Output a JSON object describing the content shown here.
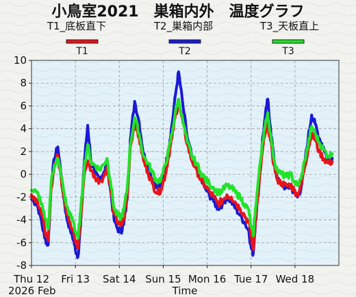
{
  "chart_data": {
    "type": "line",
    "title": "小鳥室2021　巣箱内外　温度グラフ",
    "xlabel": "Time",
    "ylabel": "",
    "ylim": [
      -8,
      10
    ],
    "yticks": [
      -8,
      -6,
      -4,
      -2,
      0,
      2,
      4,
      6,
      8,
      10
    ],
    "xlim": [
      0,
      7
    ],
    "xticks": [
      {
        "x": 0,
        "label": "Thu 12"
      },
      {
        "x": 1,
        "label": "Fri 13"
      },
      {
        "x": 2,
        "label": "Sat 14"
      },
      {
        "x": 3,
        "label": "Sun 15"
      },
      {
        "x": 4,
        "label": "Mon 16"
      },
      {
        "x": 5,
        "label": "Tue 17"
      },
      {
        "x": 6,
        "label": "Wed 18"
      }
    ],
    "xsub_label": "2026 Feb",
    "grid": true,
    "legend_position": "top",
    "series": [
      {
        "name": "T1",
        "description": "T1_底板直下",
        "color": "#e8141a",
        "x": [
          0,
          0.12,
          0.2,
          0.3,
          0.38,
          0.45,
          0.52,
          0.6,
          0.68,
          0.74,
          0.8,
          0.88,
          0.96,
          1.0,
          1.06,
          1.12,
          1.2,
          1.28,
          1.36,
          1.45,
          1.55,
          1.65,
          1.72,
          1.8,
          1.88,
          1.96,
          2.04,
          2.1,
          2.18,
          2.25,
          2.35,
          2.45,
          2.55,
          2.65,
          2.75,
          2.85,
          2.95,
          3.05,
          3.12,
          3.2,
          3.28,
          3.35,
          3.45,
          3.55,
          3.65,
          3.75,
          3.85,
          3.95,
          4.05,
          4.15,
          4.25,
          4.35,
          4.45,
          4.55,
          4.65,
          4.75,
          4.85,
          4.95,
          5.0,
          5.05,
          5.1,
          5.18,
          5.25,
          5.32,
          5.38,
          5.44,
          5.52,
          5.6,
          5.7,
          5.8,
          5.9,
          5.98,
          6.06,
          6.14,
          6.22,
          6.3,
          6.38,
          6.46,
          6.55,
          6.65,
          6.75,
          6.85
        ],
        "values": [
          -1.8,
          -2.2,
          -3.0,
          -4.8,
          -5.8,
          -1.2,
          0.8,
          1.6,
          -0.5,
          -2.0,
          -3.4,
          -4.2,
          -5.0,
          -5.8,
          -6.5,
          -4.0,
          0.0,
          1.2,
          0.3,
          -0.3,
          -0.6,
          -0.2,
          0.6,
          -1.2,
          -3.5,
          -4.2,
          -4.5,
          -4.0,
          -2.0,
          2.4,
          4.5,
          3.2,
          1.2,
          0.2,
          -0.8,
          -1.6,
          -1.4,
          0.0,
          1.5,
          3.2,
          5.2,
          6.2,
          4.5,
          2.6,
          1.2,
          0.5,
          -0.5,
          -1.0,
          -1.5,
          -2.0,
          -2.6,
          -2.3,
          -1.8,
          -2.0,
          -2.5,
          -3.0,
          -3.6,
          -4.2,
          -5.4,
          -6.6,
          -4.0,
          -1.0,
          1.8,
          3.5,
          4.5,
          3.0,
          0.8,
          -0.5,
          -0.8,
          -1.0,
          -0.9,
          -1.4,
          -1.8,
          -1.0,
          0.6,
          2.2,
          3.6,
          3.0,
          2.0,
          1.4,
          1.0,
          1.1
        ]
      },
      {
        "name": "T2",
        "description": "T2_巣箱内部",
        "color": "#1a1ad4",
        "x": [
          0,
          0.12,
          0.2,
          0.3,
          0.38,
          0.45,
          0.52,
          0.6,
          0.68,
          0.74,
          0.8,
          0.88,
          0.96,
          1.0,
          1.06,
          1.12,
          1.2,
          1.28,
          1.36,
          1.45,
          1.55,
          1.65,
          1.72,
          1.8,
          1.88,
          1.96,
          2.04,
          2.1,
          2.18,
          2.25,
          2.35,
          2.45,
          2.55,
          2.65,
          2.75,
          2.85,
          2.95,
          3.05,
          3.12,
          3.2,
          3.28,
          3.35,
          3.45,
          3.55,
          3.65,
          3.75,
          3.85,
          3.95,
          4.05,
          4.15,
          4.25,
          4.35,
          4.45,
          4.55,
          4.65,
          4.75,
          4.85,
          4.95,
          5.0,
          5.05,
          5.1,
          5.18,
          5.25,
          5.32,
          5.38,
          5.44,
          5.52,
          5.6,
          5.7,
          5.8,
          5.9,
          5.98,
          6.06,
          6.14,
          6.22,
          6.3,
          6.38,
          6.46,
          6.55,
          6.65,
          6.75,
          6.85
        ],
        "values": [
          -2.2,
          -2.6,
          -3.6,
          -5.6,
          -6.2,
          -0.8,
          1.4,
          2.4,
          -0.2,
          -2.2,
          -3.8,
          -4.8,
          -5.8,
          -6.6,
          -7.2,
          -4.4,
          1.0,
          4.3,
          1.0,
          0.0,
          -0.4,
          0.2,
          1.0,
          -1.4,
          -4.0,
          -4.8,
          -5.0,
          -4.4,
          -2.2,
          3.0,
          6.4,
          4.6,
          1.8,
          0.8,
          -0.4,
          -1.2,
          -1.0,
          0.6,
          2.2,
          4.4,
          7.0,
          9.0,
          6.0,
          3.2,
          1.6,
          0.6,
          -0.4,
          -1.2,
          -1.8,
          -2.4,
          -3.0,
          -2.6,
          -2.0,
          -2.4,
          -3.0,
          -3.6,
          -4.2,
          -5.0,
          -6.4,
          -7.0,
          -4.2,
          -1.0,
          2.6,
          5.0,
          6.6,
          4.2,
          1.4,
          -0.5,
          -0.9,
          -1.2,
          -1.1,
          -1.6,
          -2.0,
          -1.2,
          1.0,
          3.2,
          5.2,
          4.4,
          3.2,
          2.4,
          1.2,
          1.4
        ]
      },
      {
        "name": "T3",
        "description": "T3_天板直上",
        "color": "#22e22a",
        "x": [
          0,
          0.12,
          0.2,
          0.3,
          0.38,
          0.45,
          0.52,
          0.6,
          0.68,
          0.74,
          0.8,
          0.88,
          0.96,
          1.0,
          1.06,
          1.12,
          1.2,
          1.28,
          1.36,
          1.45,
          1.55,
          1.65,
          1.72,
          1.8,
          1.88,
          1.96,
          2.04,
          2.1,
          2.18,
          2.25,
          2.35,
          2.45,
          2.55,
          2.65,
          2.75,
          2.85,
          2.95,
          3.05,
          3.12,
          3.2,
          3.28,
          3.35,
          3.45,
          3.55,
          3.65,
          3.75,
          3.85,
          3.95,
          4.05,
          4.15,
          4.25,
          4.35,
          4.45,
          4.55,
          4.65,
          4.75,
          4.85,
          4.95,
          5.0,
          5.05,
          5.1,
          5.18,
          5.25,
          5.32,
          5.38,
          5.44,
          5.52,
          5.6,
          5.7,
          5.8,
          5.9,
          5.98,
          6.06,
          6.14,
          6.22,
          6.3,
          6.38,
          6.46,
          6.55,
          6.65,
          6.75,
          6.85
        ],
        "values": [
          -1.4,
          -1.6,
          -2.2,
          -3.8,
          -4.8,
          -0.6,
          0.8,
          1.4,
          -0.2,
          -1.6,
          -2.8,
          -3.6,
          -4.2,
          -5.0,
          -5.6,
          -3.2,
          0.6,
          2.6,
          1.0,
          0.8,
          0.4,
          0.9,
          1.4,
          -0.6,
          -3.0,
          -3.6,
          -3.8,
          -3.2,
          -1.2,
          2.6,
          5.0,
          3.6,
          1.6,
          1.0,
          0.2,
          -0.6,
          -0.4,
          0.8,
          2.0,
          3.6,
          5.6,
          6.6,
          4.6,
          2.8,
          1.6,
          1.0,
          0.2,
          -0.4,
          -0.8,
          -1.2,
          -1.6,
          -1.4,
          -1.0,
          -1.2,
          -1.6,
          -2.0,
          -2.6,
          -3.2,
          -4.6,
          -5.4,
          -3.0,
          0.0,
          2.6,
          4.2,
          5.4,
          3.6,
          1.4,
          0.3,
          0.0,
          -0.2,
          0.0,
          -0.6,
          -1.0,
          -0.4,
          1.2,
          2.6,
          4.2,
          3.6,
          2.8,
          2.2,
          1.6,
          1.8
        ]
      }
    ]
  },
  "header": {
    "title": "小鳥室2021　巣箱内外　温度グラフ",
    "labels": [
      "T1_底板直下",
      "T2_巣箱内部",
      "T3_天板直上"
    ]
  },
  "legend": [
    "T1",
    "T2",
    "T3"
  ]
}
